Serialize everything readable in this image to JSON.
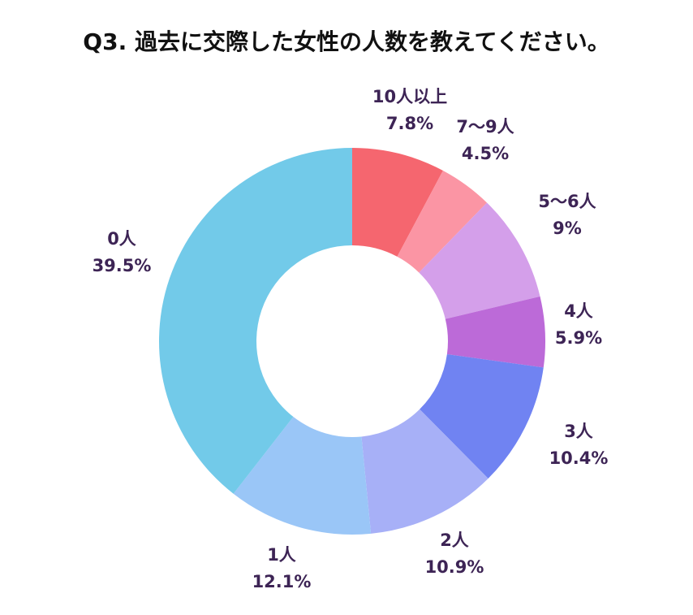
{
  "chart_data": {
    "type": "pie",
    "title": "Q3. 過去に交際した女性の人数を教えてください。",
    "slices": [
      {
        "label": "10人以上",
        "value": 7.8,
        "value_label": "7.8%",
        "color": "#f5666f"
      },
      {
        "label": "7〜9人",
        "value": 4.5,
        "value_label": "4.5%",
        "color": "#fb95a4"
      },
      {
        "label": "5〜6人",
        "value": 9,
        "value_label": "9%",
        "color": "#d49fea"
      },
      {
        "label": "4人",
        "value": 5.9,
        "value_label": "5.9%",
        "color": "#bc6ad8"
      },
      {
        "label": "3人",
        "value": 10.4,
        "value_label": "10.4%",
        "color": "#7083f2"
      },
      {
        "label": "2人",
        "value": 10.9,
        "value_label": "10.9%",
        "color": "#a7b0f7"
      },
      {
        "label": "1人",
        "value": 12.1,
        "value_label": "12.1%",
        "color": "#9ac6f7"
      },
      {
        "label": "0人",
        "value": 39.5,
        "value_label": "39.5%",
        "color": "#72cae9"
      }
    ]
  }
}
